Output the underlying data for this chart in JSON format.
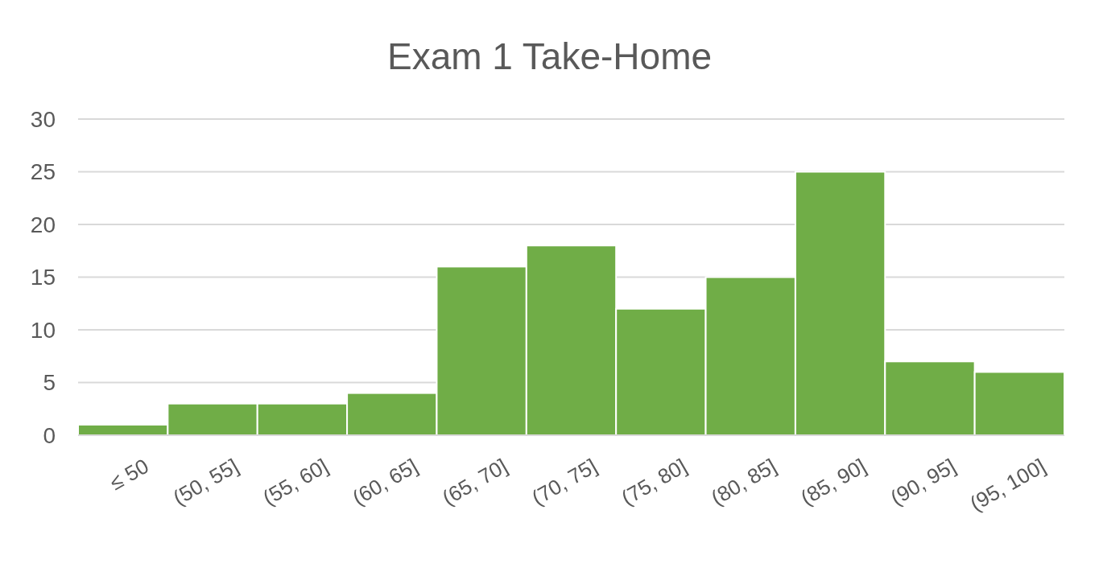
{
  "chart_data": {
    "type": "bar",
    "title": "Exam 1 Take-Home",
    "categories": [
      "≤ 50",
      "(50, 55]",
      "(55, 60]",
      "(60, 65]",
      "(65, 70]",
      "(70, 75]",
      "(75, 80]",
      "(80, 85]",
      "(85, 90]",
      "(90, 95]",
      "(95, 100]"
    ],
    "values": [
      1,
      3,
      3,
      4,
      16,
      18,
      12,
      15,
      25,
      7,
      6
    ],
    "color": "#70ad47",
    "ylim": [
      0,
      30
    ],
    "yticks": [
      0,
      5,
      10,
      15,
      20,
      25,
      30
    ],
    "grid": "y"
  }
}
